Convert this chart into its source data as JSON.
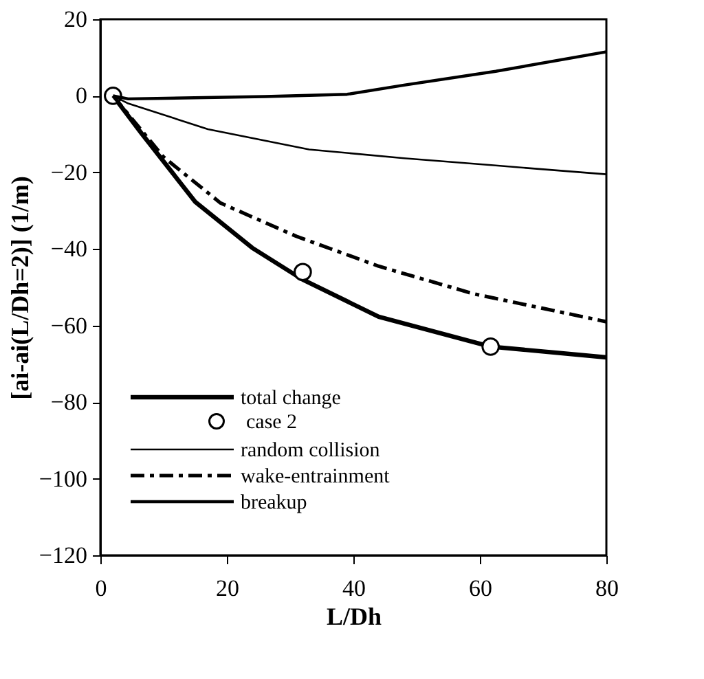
{
  "chart_data": {
    "type": "line",
    "xlabel": "L/Dh",
    "ylabel": "[ai-ai(L/Dh=2)] (1/m)",
    "xlim": [
      0,
      80
    ],
    "xticks": [
      0,
      20,
      40,
      60,
      80
    ],
    "ylim": [
      -120,
      20
    ],
    "yticks": [
      -120,
      -100,
      -80,
      -60,
      -40,
      -20,
      0,
      20
    ],
    "grid": false,
    "legend": "bottom left",
    "marker": "none",
    "series": [
      {
        "name": "total change",
        "color": "#000000",
        "line_style": "solid",
        "x": [
          2,
          6.5,
          15,
          24,
          32,
          44,
          61.7,
          80
        ],
        "values": [
          0,
          -9.8,
          -27.7,
          -39.7,
          -48,
          -57.7,
          -65.5,
          -68.3
        ]
      },
      {
        "name": "case 2",
        "type": "scatter",
        "marker": "circle",
        "color": "#000000",
        "x": [
          2,
          32,
          61.7
        ],
        "values": [
          0,
          -46,
          -65.5
        ]
      },
      {
        "name": "random collision",
        "color": "#000000",
        "line_style": "solid",
        "x": [
          2,
          4.4,
          17,
          33,
          48,
          62.5,
          80
        ],
        "values": [
          0,
          -2,
          -8.7,
          -14,
          -16.3,
          -18.2,
          -20.5
        ]
      },
      {
        "name": "wake-entrainment",
        "color": "#000000",
        "line_style": "dashed",
        "x": [
          2,
          10,
          19,
          31,
          44,
          59,
          80
        ],
        "values": [
          0,
          -16,
          -28,
          -36.7,
          -44.5,
          -51.7,
          -59
        ]
      },
      {
        "name": "breakup",
        "color": "#000000",
        "line_style": "solid",
        "x": [
          2,
          4.4,
          26,
          39,
          48,
          62.5,
          80
        ],
        "values": [
          0,
          -0.8,
          -0.2,
          0.4,
          2.8,
          6.4,
          11.5
        ]
      }
    ]
  }
}
